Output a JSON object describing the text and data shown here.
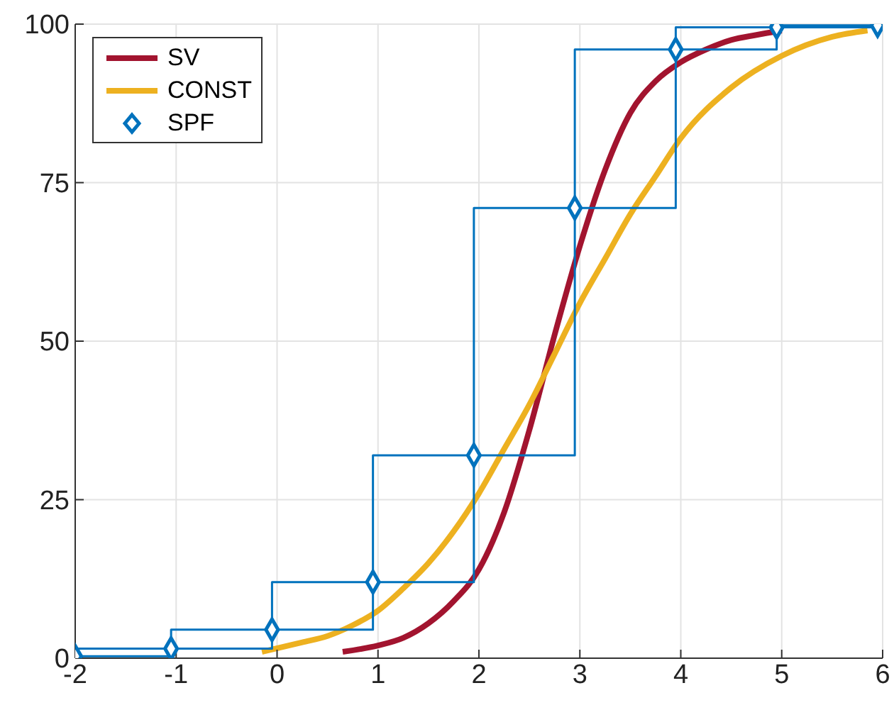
{
  "chart_data": {
    "type": "line",
    "xlim": [
      -2,
      6
    ],
    "xticks": [
      -2,
      -1,
      0,
      1,
      2,
      3,
      4,
      5,
      6
    ],
    "ylim": [
      0,
      100
    ],
    "yticks": [
      0,
      25,
      50,
      75,
      100
    ],
    "grid": true,
    "legend": "top left",
    "series": [
      {
        "name": "SV",
        "type": "line",
        "color": "#a2142f",
        "x": [
          0.65,
          1,
          1.25,
          1.5,
          1.75,
          2,
          2.25,
          2.5,
          2.75,
          3,
          3.25,
          3.5,
          3.75,
          4,
          4.25,
          4.5,
          4.75,
          5
        ],
        "values": [
          1,
          2,
          3.2,
          5.5,
          9,
          14,
          23,
          36,
          51,
          65,
          77,
          86,
          91,
          94,
          96,
          97.5,
          98.3,
          99
        ]
      },
      {
        "name": "CONST",
        "type": "line",
        "color": "#edb120",
        "x": [
          -0.15,
          0.25,
          0.5,
          0.75,
          1,
          1.25,
          1.5,
          1.75,
          2,
          2.25,
          2.5,
          2.75,
          3,
          3.25,
          3.5,
          3.75,
          4,
          4.5,
          5,
          5.5,
          5.85
        ],
        "values": [
          1,
          2.5,
          3.5,
          5.2,
          7.5,
          11,
          15,
          20,
          26,
          33,
          40,
          48,
          56,
          63,
          70,
          76,
          82,
          90,
          95,
          98,
          99
        ]
      },
      {
        "name": "SPF",
        "type": "scatter",
        "marker": "diamond",
        "color": "#0072bd",
        "x": [
          -2,
          -1.05,
          -0.05,
          0.95,
          1.95,
          2.95,
          3.95,
          4.95,
          5.95
        ],
        "values": [
          0.3,
          1.5,
          4.5,
          12,
          32,
          71,
          96,
          99.5,
          99.8
        ]
      },
      {
        "type": "step",
        "color": "#0072bd",
        "x": [
          -2,
          -1.05,
          -0.05,
          0.95,
          1.95,
          2.95,
          3.95,
          4.95,
          5.95
        ],
        "values": [
          0.3,
          1.5,
          4.5,
          12,
          32,
          71,
          96,
          99.5,
          99.8
        ]
      },
      {
        "type": "step",
        "color": "#0072bd",
        "x": [
          -2,
          -1.05,
          -0.05,
          0.95,
          1.95,
          2.95,
          3.95,
          4.95,
          5.95
        ],
        "values": [
          0.3,
          1.5,
          4.5,
          12,
          32,
          71,
          96,
          99.5,
          99.8
        ]
      }
    ]
  }
}
